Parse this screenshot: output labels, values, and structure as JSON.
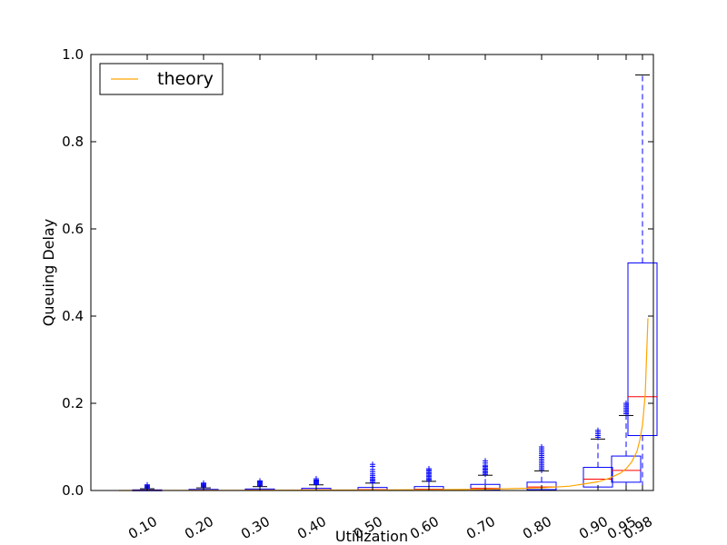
{
  "chart_data": {
    "type": "box",
    "xlabel": "Utilization",
    "ylabel": "Queuing Delay",
    "ylim": [
      0.0,
      1.0
    ],
    "yticks": [
      "0.0",
      "0.2",
      "0.4",
      "0.6",
      "0.8",
      "1.0"
    ],
    "grid": false,
    "legend": {
      "placement": "top-left",
      "entries": [
        {
          "label": "theory",
          "color": "#ffa500"
        }
      ]
    },
    "colors": {
      "box": "#0000ff",
      "median": "#ff0000",
      "theory": "#ffa500",
      "outlier": "#0000ff"
    },
    "categories": [
      "0.10",
      "0.20",
      "0.30",
      "0.40",
      "0.50",
      "0.60",
      "0.70",
      "0.80",
      "0.90",
      "0.95",
      "0.98"
    ],
    "boxes": [
      {
        "utilization": 0.1,
        "q1": 0.0,
        "median": 0.0003,
        "q3": 0.0015,
        "whisker_low": 0.0,
        "whisker_high": 0.004,
        "outliers": [
          0.005,
          0.007,
          0.009,
          0.011,
          0.013
        ]
      },
      {
        "utilization": 0.2,
        "q1": 0.0,
        "median": 0.0006,
        "q3": 0.0025,
        "whisker_low": 0.0,
        "whisker_high": 0.006,
        "outliers": [
          0.007,
          0.009,
          0.011,
          0.013,
          0.015,
          0.017
        ]
      },
      {
        "utilization": 0.3,
        "q1": 0.0,
        "median": 0.001,
        "q3": 0.0035,
        "whisker_low": 0.0,
        "whisker_high": 0.009,
        "outliers": [
          0.01,
          0.012,
          0.014,
          0.016,
          0.018,
          0.02,
          0.022
        ]
      },
      {
        "utilization": 0.4,
        "q1": 0.0001,
        "median": 0.0015,
        "q3": 0.005,
        "whisker_low": 0.0,
        "whisker_high": 0.013,
        "outliers": [
          0.014,
          0.016,
          0.018,
          0.02,
          0.022,
          0.024,
          0.027
        ]
      },
      {
        "utilization": 0.5,
        "q1": 0.0002,
        "median": 0.002,
        "q3": 0.007,
        "whisker_low": 0.0,
        "whisker_high": 0.017,
        "outliers": [
          0.018,
          0.021,
          0.024,
          0.027,
          0.03,
          0.034,
          0.038,
          0.043,
          0.048,
          0.055,
          0.06
        ]
      },
      {
        "utilization": 0.6,
        "q1": 0.0005,
        "median": 0.003,
        "q3": 0.009,
        "whisker_low": 0.0,
        "whisker_high": 0.021,
        "outliers": [
          0.023,
          0.026,
          0.029,
          0.032,
          0.035,
          0.038,
          0.041,
          0.044,
          0.047,
          0.05
        ]
      },
      {
        "utilization": 0.7,
        "q1": 0.001,
        "median": 0.005,
        "q3": 0.014,
        "whisker_low": 0.0,
        "whisker_high": 0.035,
        "outliers": [
          0.037,
          0.04,
          0.043,
          0.046,
          0.049,
          0.052,
          0.055,
          0.058,
          0.063,
          0.068
        ]
      },
      {
        "utilization": 0.8,
        "q1": 0.002,
        "median": 0.008,
        "q3": 0.019,
        "whisker_low": 0.0,
        "whisker_high": 0.045,
        "outliers": [
          0.048,
          0.052,
          0.056,
          0.06,
          0.064,
          0.068,
          0.072,
          0.076,
          0.08,
          0.084,
          0.088,
          0.092,
          0.096,
          0.1
        ]
      },
      {
        "utilization": 0.9,
        "q1": 0.008,
        "median": 0.026,
        "q3": 0.053,
        "whisker_low": 0.0,
        "whisker_high": 0.118,
        "outliers": [
          0.122,
          0.126,
          0.13,
          0.134,
          0.138
        ]
      },
      {
        "utilization": 0.95,
        "q1": 0.019,
        "median": 0.046,
        "q3": 0.079,
        "whisker_low": 0.0,
        "whisker_high": 0.172,
        "outliers": [
          0.176,
          0.18,
          0.184,
          0.188,
          0.192,
          0.196,
          0.2
        ]
      },
      {
        "utilization": 0.98,
        "q1": 0.126,
        "median": 0.215,
        "q3": 0.522,
        "whisker_low": 0.0,
        "whisker_high": 0.953,
        "outliers": []
      }
    ],
    "theory": {
      "name": "theory",
      "x": [
        0.05,
        0.1,
        0.2,
        0.3,
        0.4,
        0.5,
        0.6,
        0.7,
        0.8,
        0.85,
        0.9,
        0.92,
        0.94,
        0.95,
        0.96,
        0.97,
        0.975,
        0.98,
        0.985,
        0.99
      ],
      "y": [
        0.0,
        0.0001,
        0.0003,
        0.0005,
        0.0008,
        0.0012,
        0.0018,
        0.0028,
        0.006,
        0.01,
        0.02,
        0.028,
        0.04,
        0.05,
        0.065,
        0.09,
        0.115,
        0.15,
        0.22,
        0.395
      ]
    }
  }
}
